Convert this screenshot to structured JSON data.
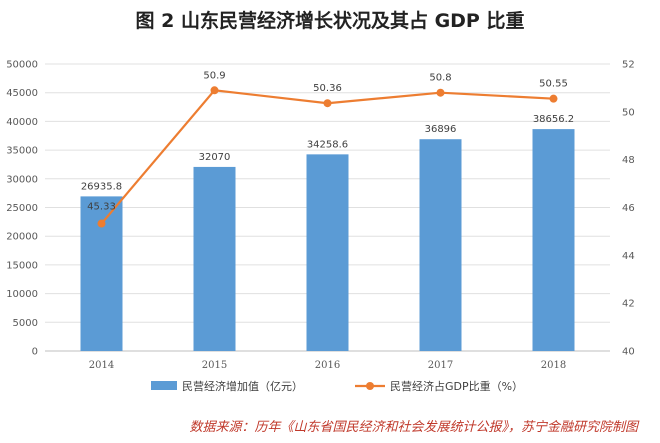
{
  "header": {
    "title": "图 2    山东民营经济增长状况及其占 GDP 比重"
  },
  "footer": {
    "source": "数据来源：历年《山东省国民经济和社会发展统计公报》，苏宁金融研究院制图"
  },
  "colors": {
    "bar": "#5b9bd5",
    "line": "#ed7d31",
    "grid": "#e0e0e0",
    "source_text": "#c0392b"
  },
  "chart_data": {
    "type": "bar",
    "categories": [
      "2014",
      "2015",
      "2016",
      "2017",
      "2018"
    ],
    "series": [
      {
        "name": "民营经济增加值（亿元）",
        "type": "bar",
        "axis": "left",
        "values": [
          26935.8,
          32070,
          34258.6,
          36896,
          38656.2
        ],
        "labels": [
          "26935.8",
          "32070",
          "34258.6",
          "36896",
          "38656.2"
        ]
      },
      {
        "name": "民营经济占GDP比重（%）",
        "type": "line",
        "axis": "right",
        "values": [
          45.33,
          50.9,
          50.36,
          50.8,
          50.55
        ],
        "labels": [
          "45.33",
          "50.9",
          "50.36",
          "50.8",
          "50.55"
        ]
      }
    ],
    "y_left": {
      "min": 0,
      "max": 50000,
      "ticks": [
        "0",
        "5000",
        "10000",
        "15000",
        "20000",
        "25000",
        "30000",
        "35000",
        "40000",
        "45000",
        "50000"
      ]
    },
    "y_right": {
      "min": 40,
      "max": 52,
      "ticks": [
        "40",
        "42",
        "44",
        "46",
        "48",
        "50",
        "52"
      ]
    },
    "grid": true,
    "legend_position": "bottom"
  }
}
